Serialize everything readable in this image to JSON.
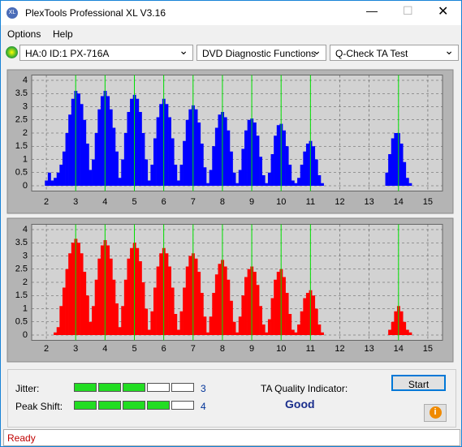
{
  "window": {
    "title": "PlexTools Professional XL V3.16"
  },
  "menu": [
    "Options",
    "Help"
  ],
  "toolbar": {
    "device": "HA:0 ID:1  PX-716A",
    "function": "DVD Diagnostic Functions",
    "test": "Q-Check TA Test"
  },
  "chart_data": [
    {
      "type": "bar",
      "color": "#0000ff",
      "grid": true,
      "ref_color": "#00e000",
      "xlim": [
        1.5,
        15.5
      ],
      "ylim": [
        -0.2,
        4.2
      ],
      "xticks": [
        2,
        3,
        4,
        5,
        6,
        7,
        8,
        9,
        10,
        11,
        12,
        13,
        14,
        15
      ],
      "yticks": [
        0,
        0.5,
        1,
        1.5,
        2,
        2.5,
        3,
        3.5,
        4
      ],
      "vlines": [
        3,
        4,
        5,
        6,
        7,
        8,
        9,
        10,
        11,
        14
      ],
      "x": [
        2.0,
        2.1,
        2.2,
        2.3,
        2.4,
        2.5,
        2.6,
        2.7,
        2.8,
        2.9,
        3.0,
        3.1,
        3.2,
        3.3,
        3.4,
        3.5,
        3.6,
        3.7,
        3.8,
        3.9,
        4.0,
        4.1,
        4.2,
        4.3,
        4.4,
        4.5,
        4.6,
        4.7,
        4.8,
        4.9,
        5.0,
        5.1,
        5.2,
        5.3,
        5.4,
        5.5,
        5.6,
        5.7,
        5.8,
        5.9,
        6.0,
        6.1,
        6.2,
        6.3,
        6.4,
        6.5,
        6.6,
        6.7,
        6.8,
        6.9,
        7.0,
        7.1,
        7.2,
        7.3,
        7.4,
        7.5,
        7.6,
        7.7,
        7.8,
        7.9,
        8.0,
        8.1,
        8.2,
        8.3,
        8.4,
        8.5,
        8.6,
        8.7,
        8.8,
        8.9,
        9.0,
        9.1,
        9.2,
        9.3,
        9.4,
        9.5,
        9.6,
        9.7,
        9.8,
        9.9,
        10.0,
        10.1,
        10.2,
        10.3,
        10.4,
        10.5,
        10.6,
        10.7,
        10.8,
        10.9,
        11.0,
        11.1,
        11.2,
        11.3,
        11.4,
        13.6,
        13.7,
        13.8,
        13.9,
        14.0,
        14.1,
        14.2,
        14.3,
        14.4
      ],
      "values": [
        0.2,
        0.5,
        0.2,
        0.3,
        0.5,
        0.8,
        1.3,
        2.0,
        2.7,
        3.3,
        3.6,
        3.5,
        3.1,
        2.5,
        1.6,
        0.6,
        1.0,
        2.0,
        2.9,
        3.4,
        3.6,
        3.4,
        2.9,
        2.2,
        1.3,
        0.3,
        1.0,
        2.0,
        2.8,
        3.3,
        3.45,
        3.3,
        2.8,
        2.0,
        1.0,
        0.2,
        0.8,
        1.8,
        2.6,
        3.1,
        3.3,
        3.1,
        2.6,
        1.8,
        0.8,
        0.2,
        0.8,
        1.7,
        2.5,
        2.9,
        3.05,
        2.9,
        2.4,
        1.6,
        0.7,
        0.1,
        0.6,
        1.5,
        2.2,
        2.7,
        2.8,
        2.6,
        2.1,
        1.3,
        0.5,
        0.1,
        0.6,
        1.4,
        2.1,
        2.5,
        2.55,
        2.4,
        1.9,
        1.1,
        0.4,
        0.1,
        0.5,
        1.2,
        1.9,
        2.3,
        2.35,
        2.1,
        1.5,
        0.8,
        0.2,
        0.1,
        0.3,
        0.8,
        1.3,
        1.6,
        1.7,
        1.5,
        1.0,
        0.4,
        0.1,
        0.5,
        1.2,
        1.8,
        2.0,
        2.0,
        1.6,
        0.9,
        0.3,
        0.1
      ]
    },
    {
      "type": "bar",
      "color": "#ff0000",
      "grid": true,
      "ref_color": "#00e000",
      "xlim": [
        1.5,
        15.5
      ],
      "ylim": [
        -0.2,
        4.2
      ],
      "xticks": [
        2,
        3,
        4,
        5,
        6,
        7,
        8,
        9,
        10,
        11,
        12,
        13,
        14,
        15
      ],
      "yticks": [
        0,
        0.5,
        1,
        1.5,
        2,
        2.5,
        3,
        3.5,
        4
      ],
      "vlines": [
        3,
        4,
        5,
        6,
        7,
        8,
        9,
        10,
        11,
        14
      ],
      "x": [
        2.0,
        2.1,
        2.2,
        2.3,
        2.4,
        2.5,
        2.6,
        2.7,
        2.8,
        2.9,
        3.0,
        3.1,
        3.2,
        3.3,
        3.4,
        3.5,
        3.6,
        3.7,
        3.8,
        3.9,
        4.0,
        4.1,
        4.2,
        4.3,
        4.4,
        4.5,
        4.6,
        4.7,
        4.8,
        4.9,
        5.0,
        5.1,
        5.2,
        5.3,
        5.4,
        5.5,
        5.6,
        5.7,
        5.8,
        5.9,
        6.0,
        6.1,
        6.2,
        6.3,
        6.4,
        6.5,
        6.6,
        6.7,
        6.8,
        6.9,
        7.0,
        7.1,
        7.2,
        7.3,
        7.4,
        7.5,
        7.6,
        7.7,
        7.8,
        7.9,
        8.0,
        8.1,
        8.2,
        8.3,
        8.4,
        8.5,
        8.6,
        8.7,
        8.8,
        8.9,
        9.0,
        9.1,
        9.2,
        9.3,
        9.4,
        9.5,
        9.6,
        9.7,
        9.8,
        9.9,
        10.0,
        10.1,
        10.2,
        10.3,
        10.4,
        10.5,
        10.6,
        10.7,
        10.8,
        10.9,
        11.0,
        11.1,
        11.2,
        11.3,
        11.4,
        13.6,
        13.7,
        13.8,
        13.9,
        14.0,
        14.1,
        14.2,
        14.3,
        14.4
      ],
      "values": [
        0,
        0,
        0,
        0.1,
        0.3,
        1.1,
        1.8,
        2.5,
        3.1,
        3.5,
        3.65,
        3.5,
        3.1,
        2.4,
        1.5,
        0.5,
        1.1,
        2.1,
        2.9,
        3.4,
        3.6,
        3.4,
        2.9,
        2.1,
        1.2,
        0.3,
        1.1,
        2.1,
        2.9,
        3.3,
        3.5,
        3.3,
        2.8,
        2.0,
        1.0,
        0.2,
        0.9,
        1.8,
        2.6,
        3.1,
        3.3,
        3.1,
        2.6,
        1.8,
        0.8,
        0.2,
        0.9,
        1.8,
        2.6,
        3.0,
        3.1,
        2.9,
        2.4,
        1.6,
        0.7,
        0.1,
        0.7,
        1.6,
        2.3,
        2.7,
        2.85,
        2.6,
        2.1,
        1.3,
        0.5,
        0.1,
        0.7,
        1.5,
        2.2,
        2.5,
        2.6,
        2.4,
        1.9,
        1.1,
        0.4,
        0.1,
        0.6,
        1.4,
        2.1,
        2.4,
        2.5,
        2.2,
        1.6,
        0.8,
        0.2,
        0.1,
        0.4,
        0.9,
        1.4,
        1.6,
        1.7,
        1.5,
        1.0,
        0.4,
        0.1,
        0,
        0.2,
        0.5,
        0.9,
        1.1,
        0.9,
        0.5,
        0.2,
        0.1
      ]
    }
  ],
  "quality": {
    "jitter_label": "Jitter:",
    "jitter": 3,
    "peak_shift_label": "Peak Shift:",
    "peak_shift": 4,
    "indicator_label": "TA Quality Indicator:",
    "indicator": "Good",
    "start": "Start"
  },
  "status": "Ready"
}
